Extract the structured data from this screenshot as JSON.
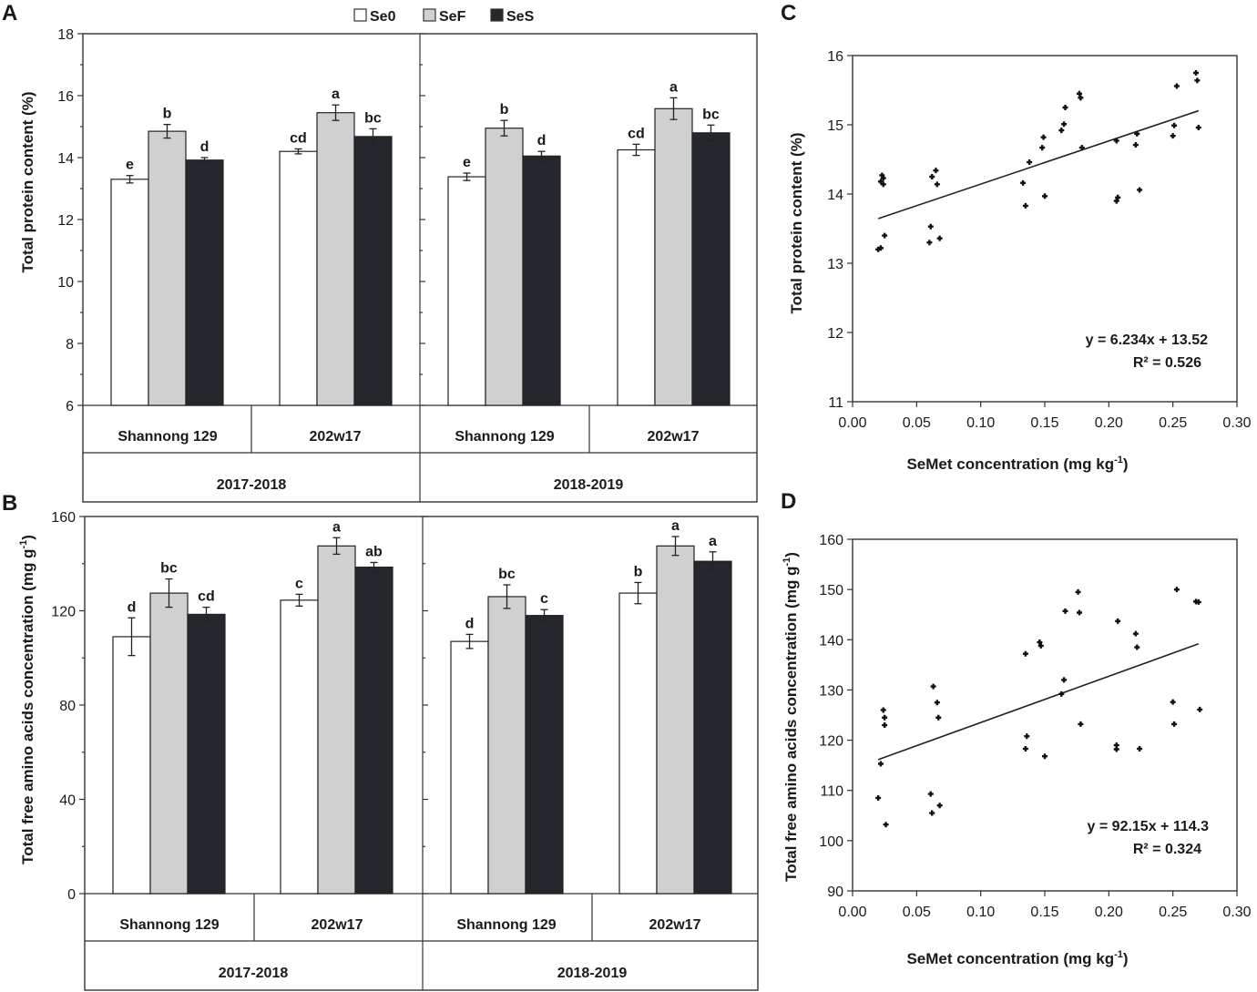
{
  "colors": {
    "Se0": "#ffffff",
    "SeF": "#d0d0d0",
    "SeS": "#24272c",
    "axis": "#333333",
    "text": "#1a1a1a"
  },
  "legend": {
    "items": [
      "Se0",
      "SeF",
      "SeS"
    ]
  },
  "chart_data": [
    {
      "panel": "A",
      "type": "bar",
      "ylabel": "Total protein content (%)",
      "ylim": [
        6,
        18
      ],
      "yticks": [
        6,
        8,
        10,
        12,
        14,
        16,
        18
      ],
      "series_names": [
        "Se0",
        "SeF",
        "SeS"
      ],
      "groups": [
        {
          "season": "2017-2018",
          "cultivars": [
            {
              "name": "Shannong 129",
              "values": [
                13.3,
                14.85,
                13.92
              ],
              "errors": [
                0.12,
                0.22,
                0.08
              ],
              "letters": [
                "e",
                "b",
                "d"
              ]
            },
            {
              "name": "202w17",
              "values": [
                14.2,
                15.45,
                14.68
              ],
              "errors": [
                0.08,
                0.25,
                0.25
              ],
              "letters": [
                "cd",
                "a",
                "bc"
              ]
            }
          ]
        },
        {
          "season": "2018-2019",
          "cultivars": [
            {
              "name": "Shannong 129",
              "values": [
                13.38,
                14.95,
                14.05
              ],
              "errors": [
                0.12,
                0.25,
                0.15
              ],
              "letters": [
                "e",
                "b",
                "d"
              ]
            },
            {
              "name": "202w17",
              "values": [
                14.25,
                15.58,
                14.8
              ],
              "errors": [
                0.18,
                0.35,
                0.25
              ],
              "letters": [
                "cd",
                "a",
                "bc"
              ]
            }
          ]
        }
      ]
    },
    {
      "panel": "B",
      "type": "bar",
      "ylabel": "Total free amino acids concentration (mg g-1)",
      "ylim": [
        0,
        160
      ],
      "yticks": [
        0,
        40,
        80,
        120,
        160
      ],
      "series_names": [
        "Se0",
        "SeF",
        "SeS"
      ],
      "groups": [
        {
          "season": "2017-2018",
          "cultivars": [
            {
              "name": "Shannong 129",
              "values": [
                109,
                127.5,
                118.5
              ],
              "errors": [
                8,
                6,
                3
              ],
              "letters": [
                "d",
                "bc",
                "cd"
              ]
            },
            {
              "name": "202w17",
              "values": [
                124.5,
                147.5,
                138.5
              ],
              "errors": [
                2.5,
                3.5,
                2
              ],
              "letters": [
                "c",
                "a",
                "ab"
              ]
            }
          ]
        },
        {
          "season": "2018-2019",
          "cultivars": [
            {
              "name": "Shannong 129",
              "values": [
                107,
                126,
                118
              ],
              "errors": [
                3,
                5,
                2.5
              ],
              "letters": [
                "d",
                "bc",
                "c"
              ]
            },
            {
              "name": "202w17",
              "values": [
                127.5,
                147.5,
                141
              ],
              "errors": [
                4.5,
                4,
                4
              ],
              "letters": [
                "b",
                "a",
                "a"
              ]
            }
          ]
        }
      ]
    },
    {
      "panel": "C",
      "type": "scatter",
      "xlabel": "SeMet concentration (mg kg-1)",
      "ylabel": "Total protein content (%)",
      "xlim": [
        0,
        0.3
      ],
      "ylim": [
        11,
        16
      ],
      "xticks": [
        0.0,
        0.05,
        0.1,
        0.15,
        0.2,
        0.25,
        0.3
      ],
      "xtick_labels": [
        "0.00",
        "0.05",
        "0.10",
        "0.15",
        "0.20",
        "0.25",
        "0.30"
      ],
      "yticks": [
        11,
        12,
        13,
        14,
        15,
        16
      ],
      "equation": "y = 6.234x + 13.52",
      "r2": "R² = 0.526",
      "fit": {
        "slope": 6.234,
        "intercept": 13.52,
        "x_range": [
          0.02,
          0.27
        ]
      },
      "points": [
        [
          0.02,
          13.2
        ],
        [
          0.022,
          13.22
        ],
        [
          0.025,
          13.4
        ],
        [
          0.022,
          14.18
        ],
        [
          0.024,
          14.23
        ],
        [
          0.024,
          14.14
        ],
        [
          0.023,
          14.27
        ],
        [
          0.06,
          13.3
        ],
        [
          0.061,
          13.53
        ],
        [
          0.068,
          13.36
        ],
        [
          0.062,
          14.25
        ],
        [
          0.065,
          14.34
        ],
        [
          0.066,
          14.14
        ],
        [
          0.133,
          14.16
        ],
        [
          0.135,
          13.83
        ],
        [
          0.138,
          14.46
        ],
        [
          0.149,
          14.82
        ],
        [
          0.148,
          14.67
        ],
        [
          0.15,
          13.97
        ],
        [
          0.163,
          14.92
        ],
        [
          0.165,
          15.01
        ],
        [
          0.166,
          15.25
        ],
        [
          0.177,
          15.45
        ],
        [
          0.178,
          15.39
        ],
        [
          0.179,
          14.67
        ],
        [
          0.206,
          14.77
        ],
        [
          0.206,
          13.9
        ],
        [
          0.207,
          13.95
        ],
        [
          0.221,
          14.71
        ],
        [
          0.222,
          14.87
        ],
        [
          0.224,
          14.06
        ],
        [
          0.25,
          14.84
        ],
        [
          0.251,
          14.99
        ],
        [
          0.253,
          15.56
        ],
        [
          0.268,
          15.75
        ],
        [
          0.269,
          15.64
        ],
        [
          0.27,
          14.96
        ]
      ]
    },
    {
      "panel": "D",
      "type": "scatter",
      "xlabel": "SeMet concentration (mg kg-1)",
      "ylabel": "Total free amino acids concentration (mg g-1)",
      "xlim": [
        0,
        0.3
      ],
      "ylim": [
        90,
        160
      ],
      "xticks": [
        0.0,
        0.05,
        0.1,
        0.15,
        0.2,
        0.25,
        0.3
      ],
      "xtick_labels": [
        "0.00",
        "0.05",
        "0.10",
        "0.15",
        "0.20",
        "0.25",
        "0.30"
      ],
      "yticks": [
        90,
        100,
        110,
        120,
        130,
        140,
        150,
        160
      ],
      "equation": "y = 92.15x + 114.3",
      "r2": "R² = 0.324",
      "fit": {
        "slope": 92.15,
        "intercept": 114.3,
        "x_range": [
          0.02,
          0.27
        ]
      },
      "points": [
        [
          0.02,
          108.5
        ],
        [
          0.022,
          115.3
        ],
        [
          0.024,
          126
        ],
        [
          0.025,
          124.5
        ],
        [
          0.025,
          123
        ],
        [
          0.026,
          103.2
        ],
        [
          0.061,
          109.3
        ],
        [
          0.062,
          105.5
        ],
        [
          0.063,
          130.7
        ],
        [
          0.066,
          127.5
        ],
        [
          0.067,
          124.5
        ],
        [
          0.068,
          107
        ],
        [
          0.135,
          137.2
        ],
        [
          0.135,
          118.3
        ],
        [
          0.136,
          120.8
        ],
        [
          0.146,
          139.5
        ],
        [
          0.147,
          138.8
        ],
        [
          0.15,
          116.8
        ],
        [
          0.163,
          129.2
        ],
        [
          0.165,
          132
        ],
        [
          0.166,
          145.7
        ],
        [
          0.176,
          149.5
        ],
        [
          0.177,
          145.4
        ],
        [
          0.178,
          123.2
        ],
        [
          0.206,
          119
        ],
        [
          0.206,
          118.2
        ],
        [
          0.207,
          143.7
        ],
        [
          0.221,
          141.2
        ],
        [
          0.222,
          138.5
        ],
        [
          0.224,
          118.3
        ],
        [
          0.25,
          127.6
        ],
        [
          0.251,
          123.2
        ],
        [
          0.253,
          150
        ],
        [
          0.268,
          147.6
        ],
        [
          0.27,
          147.5
        ],
        [
          0.271,
          126.1
        ]
      ]
    }
  ]
}
